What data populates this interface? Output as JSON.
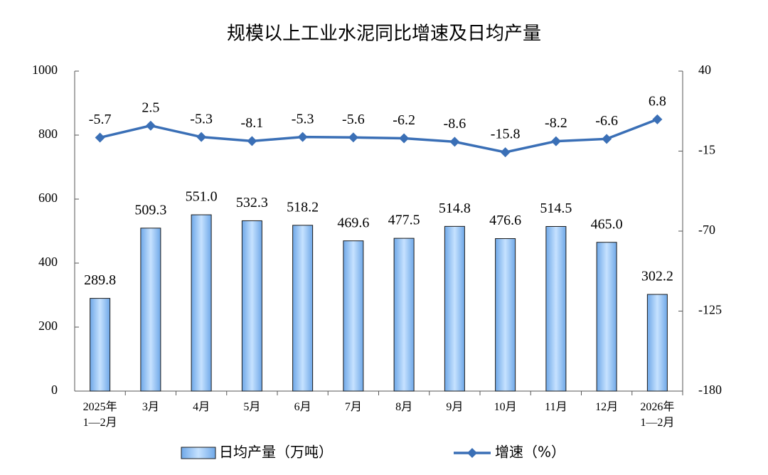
{
  "chart_data": {
    "type": "bar",
    "title": "规模以上工业水泥同比增速及日均产量",
    "categories": [
      "2025年\n1—2月",
      "3月",
      "4月",
      "5月",
      "6月",
      "7月",
      "8月",
      "9月",
      "10月",
      "11月",
      "12月",
      "2026年\n1—2月"
    ],
    "series": [
      {
        "name": "日均产量（万吨）",
        "type": "bar",
        "color": "#99ccff",
        "values": [
          289.8,
          509.3,
          551.0,
          532.3,
          518.2,
          469.6,
          477.5,
          514.8,
          476.6,
          514.5,
          465.0,
          302.2
        ],
        "value_labels": [
          "289.8",
          "509.3",
          "551.0",
          "532.3",
          "518.2",
          "469.6",
          "477.5",
          "514.8",
          "476.6",
          "514.5",
          "465.0",
          "302.2"
        ]
      },
      {
        "name": "增速（%）",
        "type": "line",
        "axis": "y2",
        "color": "#3a6fb6",
        "values": [
          -5.7,
          2.5,
          -5.3,
          -8.1,
          -5.3,
          -5.6,
          -6.2,
          -8.6,
          -15.8,
          -8.2,
          -6.6,
          6.8
        ]
      }
    ],
    "ylim": [
      0,
      1000
    ],
    "yticks": [
      0,
      200,
      400,
      600,
      800,
      1000
    ],
    "y2lim": [
      -180,
      40
    ],
    "y2ticks": [
      40,
      -15,
      -70,
      -125,
      -180
    ]
  }
}
